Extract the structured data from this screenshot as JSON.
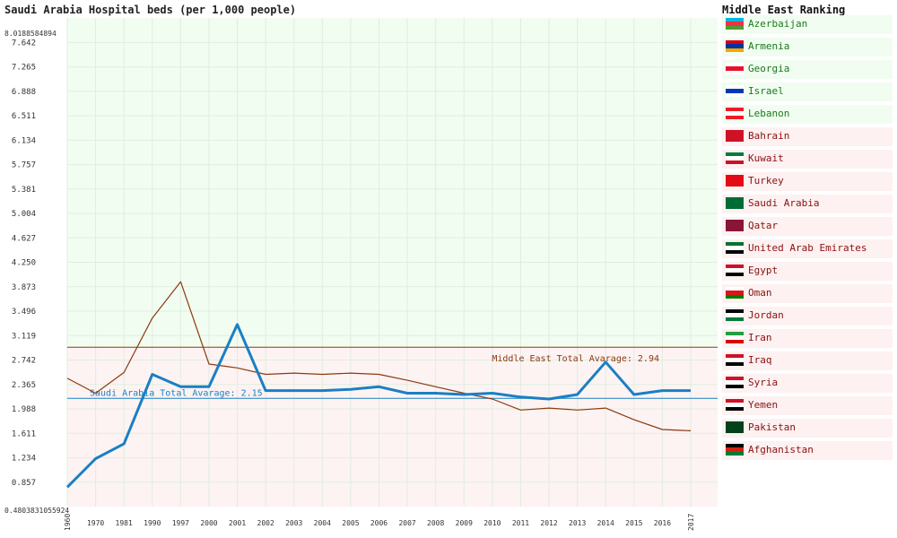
{
  "chart_data": {
    "type": "line",
    "title": "Saudi Arabia Hospital beds (per 1,000 people)",
    "x": [
      "1960",
      "1970",
      "1981",
      "1990",
      "1997",
      "2000",
      "2001",
      "2002",
      "2003",
      "2004",
      "2005",
      "2006",
      "2007",
      "2008",
      "2009",
      "2010",
      "2011",
      "2012",
      "2013",
      "2014",
      "2015",
      "2016",
      "2017"
    ],
    "y_ticks": [
      "0.857",
      "1.234",
      "1.611",
      "1.988",
      "2.365",
      "2.742",
      "3.119",
      "3.496",
      "3.873",
      "4.250",
      "4.627",
      "5.004",
      "5.381",
      "5.757",
      "6.134",
      "6.511",
      "6.888",
      "7.265",
      "7.642"
    ],
    "ymin_label": "0.4803831055924",
    "ymax_label": "8.0188584894",
    "ylim": [
      0.48,
      8.02
    ],
    "series": [
      {
        "name": "Saudi Arabia",
        "color": "#1a7fc4",
        "values": [
          0.78,
          1.22,
          1.45,
          2.52,
          2.33,
          2.33,
          3.29,
          2.27,
          2.27,
          2.27,
          2.29,
          2.33,
          2.23,
          2.23,
          2.21,
          2.23,
          2.17,
          2.14,
          2.21,
          2.71,
          2.21,
          2.27,
          2.27
        ]
      },
      {
        "name": "Middle East Average",
        "color": "#8b3a0f",
        "values": [
          2.46,
          2.23,
          2.55,
          3.39,
          3.95,
          2.68,
          2.62,
          2.52,
          2.54,
          2.52,
          2.54,
          2.52,
          2.43,
          2.33,
          2.23,
          2.14,
          1.97,
          2.0,
          1.97,
          2.0,
          1.82,
          1.67,
          1.65
        ]
      }
    ],
    "reference_lines": [
      {
        "label": "Middle East Total Avarage: 2.94",
        "value": 2.94,
        "color": "#8b3a0f"
      },
      {
        "label": "Saudi Arabia Total Avarage: 2.15",
        "value": 2.15,
        "color": "#1a7fc4"
      }
    ],
    "grid": true
  },
  "ranking": {
    "title": "Middle East Ranking",
    "items": [
      {
        "name": "Azerbaijan",
        "group": "above",
        "flag": [
          "#00b5e2",
          "#ef3340",
          "#509e2f"
        ]
      },
      {
        "name": "Armenia",
        "group": "above",
        "flag": [
          "#d90012",
          "#0033a0",
          "#f2a800"
        ]
      },
      {
        "name": "Georgia",
        "group": "above",
        "flag": [
          "#ffffff",
          "#e8112d",
          "#ffffff"
        ]
      },
      {
        "name": "Israel",
        "group": "above",
        "flag": [
          "#ffffff",
          "#0038b8",
          "#ffffff"
        ]
      },
      {
        "name": "Lebanon",
        "group": "above",
        "flag": [
          "#ed1c24",
          "#ffffff",
          "#ed1c24"
        ]
      },
      {
        "name": "Bahrain",
        "group": "below",
        "flag": [
          "#ce1126",
          "#ce1126",
          "#ce1126"
        ]
      },
      {
        "name": "Kuwait",
        "group": "below",
        "flag": [
          "#007a3d",
          "#ffffff",
          "#ce1126"
        ]
      },
      {
        "name": "Turkey",
        "group": "below",
        "flag": [
          "#e30a17",
          "#e30a17",
          "#e30a17"
        ]
      },
      {
        "name": "Saudi Arabia",
        "group": "below",
        "flag": [
          "#006c35",
          "#006c35",
          "#006c35"
        ]
      },
      {
        "name": "Qatar",
        "group": "below",
        "flag": [
          "#8a1538",
          "#8a1538",
          "#8a1538"
        ]
      },
      {
        "name": "United Arab Emirates",
        "group": "below",
        "flag": [
          "#00732f",
          "#ffffff",
          "#000000"
        ]
      },
      {
        "name": "Egypt",
        "group": "below",
        "flag": [
          "#ce1126",
          "#ffffff",
          "#000000"
        ]
      },
      {
        "name": "Oman",
        "group": "below",
        "flag": [
          "#ffffff",
          "#db161b",
          "#008000"
        ]
      },
      {
        "name": "Jordan",
        "group": "below",
        "flag": [
          "#000000",
          "#ffffff",
          "#007a3d"
        ]
      },
      {
        "name": "Iran",
        "group": "below",
        "flag": [
          "#239f40",
          "#ffffff",
          "#da0000"
        ]
      },
      {
        "name": "Iraq",
        "group": "below",
        "flag": [
          "#ce1126",
          "#ffffff",
          "#000000"
        ]
      },
      {
        "name": "Syria",
        "group": "below",
        "flag": [
          "#ce1126",
          "#ffffff",
          "#000000"
        ]
      },
      {
        "name": "Yemen",
        "group": "below",
        "flag": [
          "#ce1126",
          "#ffffff",
          "#000000"
        ]
      },
      {
        "name": "Pakistan",
        "group": "below",
        "flag": [
          "#01411c",
          "#01411c",
          "#01411c"
        ]
      },
      {
        "name": "Afghanistan",
        "group": "below",
        "flag": [
          "#000000",
          "#d32011",
          "#007a36"
        ]
      }
    ]
  }
}
